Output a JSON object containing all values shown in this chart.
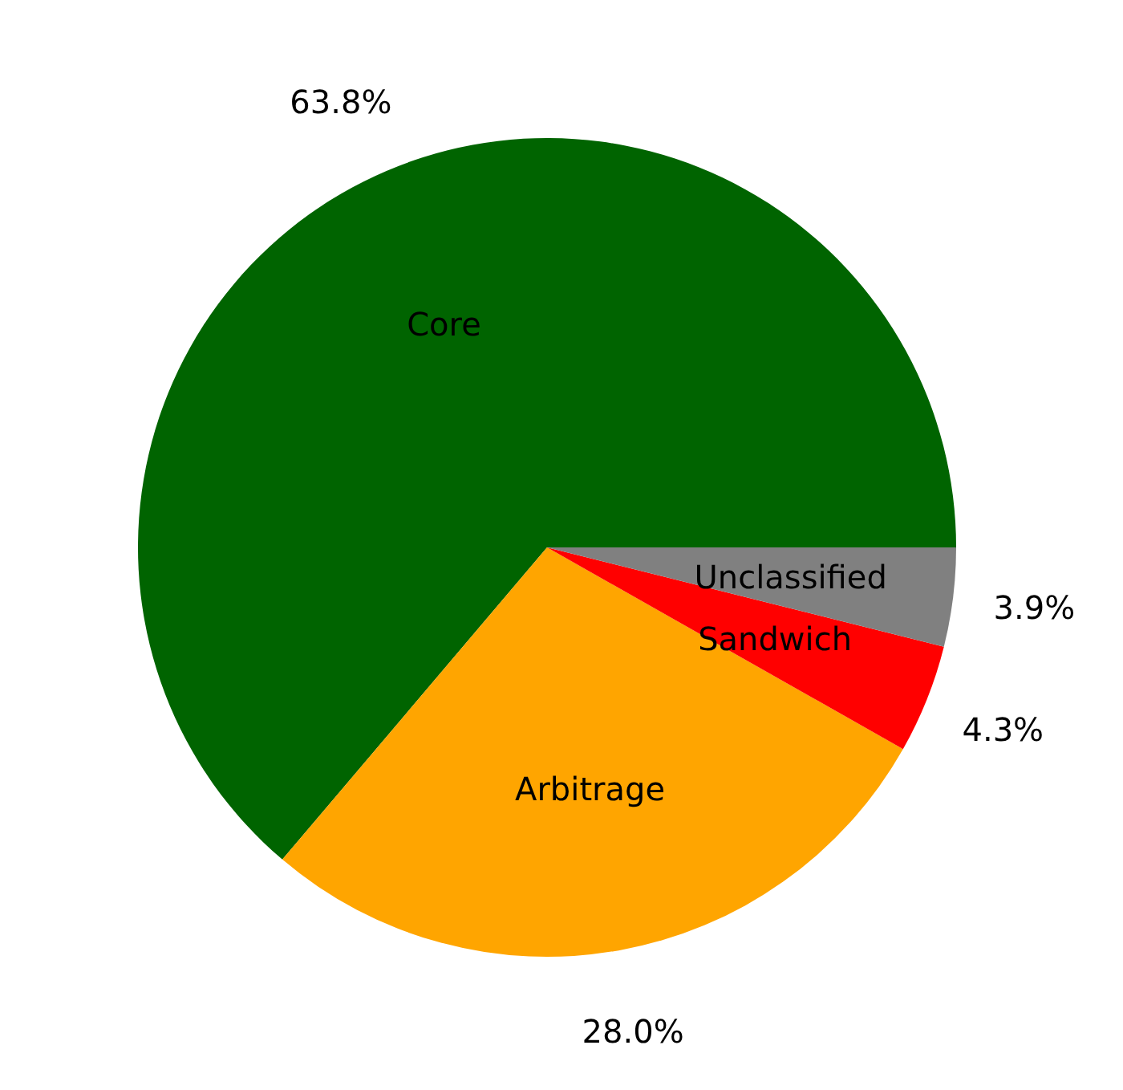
{
  "chart_data": {
    "type": "pie",
    "categories": [
      "Core",
      "Arbitrage",
      "Sandwich",
      "Unclassified"
    ],
    "values": [
      63.8,
      28.0,
      4.3,
      3.9
    ],
    "colors": [
      "#006400",
      "#ffa500",
      "#ff0000",
      "#808080"
    ],
    "value_labels": [
      "63.8%",
      "28.0%",
      "4.3%",
      "3.9%"
    ]
  }
}
